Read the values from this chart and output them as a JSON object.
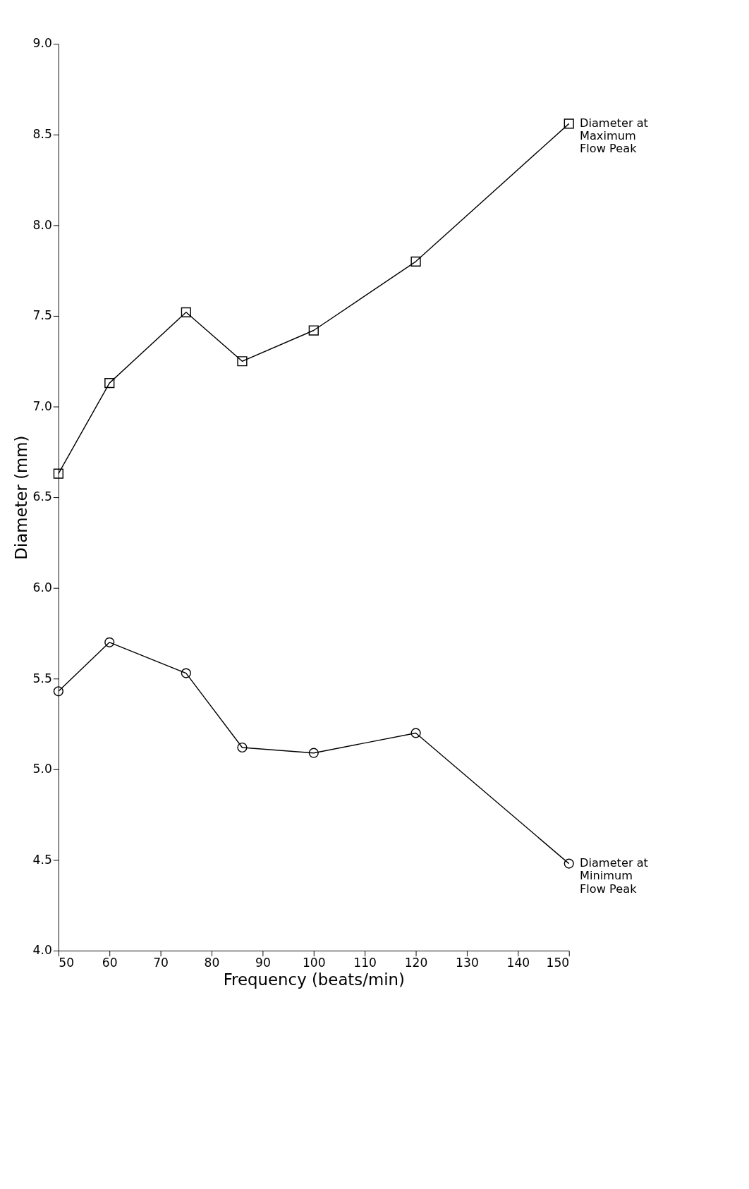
{
  "chart_data": {
    "type": "line",
    "xlabel": "Frequency (beats/min)",
    "ylabel": "Diameter (mm)",
    "x": [
      50,
      60,
      75,
      86,
      100,
      120,
      150
    ],
    "series": [
      {
        "name": "Diameter at\nMaximum\nFlow Peak",
        "color": "#000000",
        "marker": "square",
        "values": [
          6.63,
          7.13,
          7.52,
          7.25,
          7.42,
          7.8,
          8.56
        ]
      },
      {
        "name": "Diameter at\nMinimum\nFlow Peak",
        "color": "#000000",
        "marker": "circle",
        "values": [
          5.43,
          5.7,
          5.53,
          5.12,
          5.09,
          5.2,
          4.48
        ]
      }
    ],
    "xlim": [
      50,
      150
    ],
    "xticks": [
      50,
      60,
      70,
      80,
      90,
      100,
      110,
      120,
      130,
      140,
      150
    ],
    "ylim": [
      4,
      9
    ],
    "yticks": [
      {
        "value": 4,
        "label": "4.0"
      },
      {
        "value": 4.5,
        "label": "4.5"
      },
      {
        "value": 5,
        "label": "5.0"
      },
      {
        "value": 5.5,
        "label": "5.5"
      },
      {
        "value": 6,
        "label": "6.0"
      },
      {
        "value": 6.5,
        "label": "6.5"
      },
      {
        "value": 7,
        "label": "7.0"
      },
      {
        "value": 7.5,
        "label": "7.5"
      },
      {
        "value": 8,
        "label": "8.0"
      },
      {
        "value": 8.5,
        "label": "8.5"
      },
      {
        "value": 9,
        "label": "9.0"
      }
    ],
    "grid": false,
    "line_style": "solid"
  }
}
